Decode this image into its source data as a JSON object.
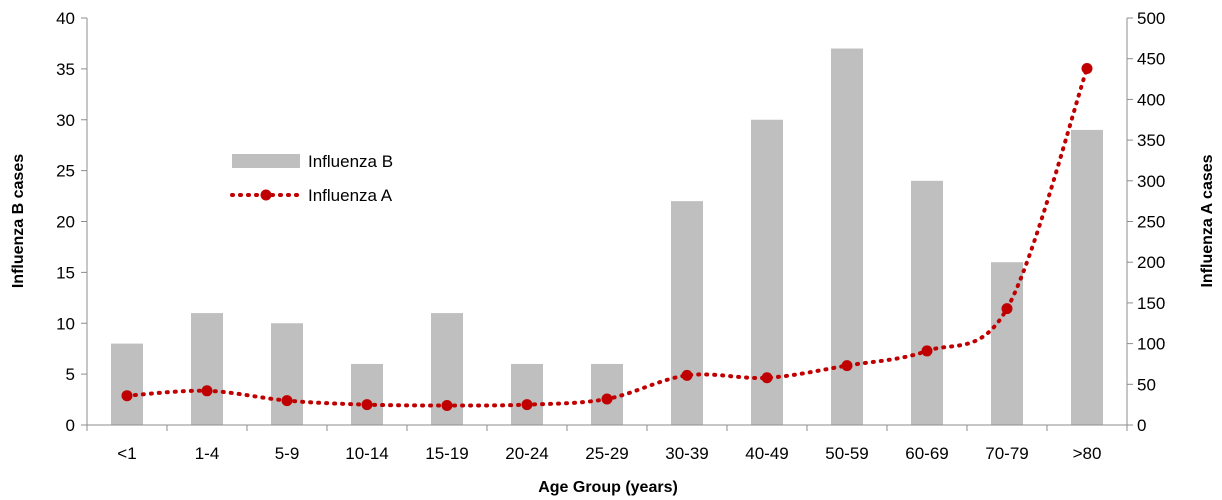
{
  "chart_data": {
    "type": "bar+line",
    "categories": [
      "<1",
      "1-4",
      "5-9",
      "10-14",
      "15-19",
      "20-24",
      "25-29",
      "30-39",
      "40-49",
      "50-59",
      "60-69",
      "70-79",
      ">80"
    ],
    "series": [
      {
        "name": "Influenza B",
        "type": "bar",
        "axis": "left",
        "color": "#bfbfbf",
        "values": [
          8,
          11,
          10,
          6,
          11,
          6,
          6,
          22,
          30,
          37,
          24,
          16,
          29
        ]
      },
      {
        "name": "Influenza A",
        "type": "line",
        "axis": "right",
        "color": "#c00000",
        "line_style": "dotted",
        "marker": "circle",
        "smooth": true,
        "values": [
          36,
          42,
          30,
          25,
          24,
          25,
          32,
          61,
          58,
          73,
          91,
          143,
          438
        ]
      }
    ],
    "xlabel": "Age Group (years)",
    "ylabel_left": "Influenza B cases",
    "ylabel_right": "Influenza A cases",
    "ylim_left": [
      0,
      40
    ],
    "yticks_left": [
      0,
      5,
      10,
      15,
      20,
      25,
      30,
      35,
      40
    ],
    "ylim_right": [
      0,
      500
    ],
    "yticks_right": [
      0,
      50,
      100,
      150,
      200,
      250,
      300,
      350,
      400,
      450,
      500
    ],
    "grid": false,
    "legend_position": "upper-left inside plot"
  }
}
